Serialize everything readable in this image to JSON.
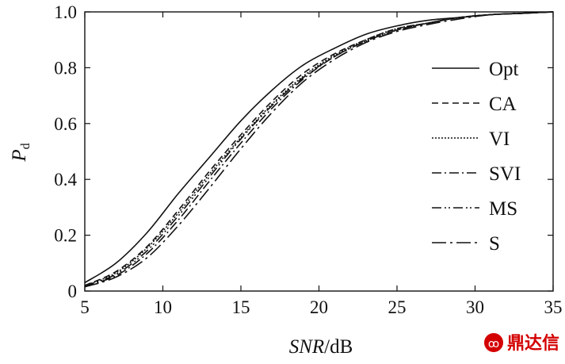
{
  "chart_data": {
    "type": "line",
    "title": "",
    "xlabel_italic": "SNR",
    "xlabel_unit": "/dB",
    "ylabel_main": "P",
    "ylabel_sub": "d",
    "xlim": [
      5,
      35
    ],
    "ylim": [
      0,
      1.0
    ],
    "x_ticks": [
      "5",
      "10",
      "15",
      "20",
      "25",
      "30",
      "35"
    ],
    "y_ticks": [
      "0",
      "0.2",
      "0.4",
      "0.6",
      "0.8",
      "1.0"
    ],
    "grid": false,
    "legend_position": "right",
    "series": [
      {
        "name": "Opt",
        "dash": "solid",
        "x": [
          5,
          7,
          9,
          11,
          13,
          15,
          17,
          19,
          21,
          23,
          25,
          27,
          29,
          31,
          33,
          35
        ],
        "y": [
          0.03,
          0.1,
          0.21,
          0.35,
          0.48,
          0.61,
          0.72,
          0.81,
          0.87,
          0.92,
          0.95,
          0.97,
          0.98,
          0.99,
          0.995,
          1.0
        ]
      },
      {
        "name": "CA",
        "dash": "dashed",
        "x": [
          5,
          7,
          9,
          11,
          13,
          15,
          17,
          19,
          21,
          23,
          25,
          27,
          29,
          31,
          33,
          35
        ],
        "y": [
          0.02,
          0.07,
          0.16,
          0.29,
          0.43,
          0.56,
          0.68,
          0.78,
          0.85,
          0.9,
          0.94,
          0.96,
          0.98,
          0.99,
          0.995,
          1.0
        ]
      },
      {
        "name": "VI",
        "dash": "dotted",
        "x": [
          5,
          7,
          9,
          11,
          13,
          15,
          17,
          19,
          21,
          23,
          25,
          27,
          29,
          31,
          33,
          35
        ],
        "y": [
          0.02,
          0.065,
          0.155,
          0.28,
          0.42,
          0.55,
          0.67,
          0.77,
          0.845,
          0.9,
          0.94,
          0.96,
          0.98,
          0.99,
          0.995,
          1.0
        ]
      },
      {
        "name": "SVI",
        "dash": "dashdot",
        "x": [
          5,
          7,
          9,
          11,
          13,
          15,
          17,
          19,
          21,
          23,
          25,
          27,
          29,
          31,
          33,
          35
        ],
        "y": [
          0.018,
          0.055,
          0.135,
          0.255,
          0.395,
          0.53,
          0.655,
          0.76,
          0.84,
          0.895,
          0.935,
          0.96,
          0.98,
          0.99,
          0.995,
          1.0
        ]
      },
      {
        "name": "MS",
        "dash": "dashdotdot",
        "x": [
          5,
          7,
          9,
          11,
          13,
          15,
          17,
          19,
          21,
          23,
          25,
          27,
          29,
          31,
          33,
          35
        ],
        "y": [
          0.019,
          0.06,
          0.145,
          0.27,
          0.41,
          0.545,
          0.665,
          0.765,
          0.84,
          0.895,
          0.935,
          0.96,
          0.98,
          0.99,
          0.995,
          1.0
        ]
      },
      {
        "name": "S",
        "dash": "longdashdot",
        "x": [
          5,
          7,
          9,
          11,
          13,
          15,
          17,
          19,
          21,
          23,
          25,
          27,
          29,
          31,
          33,
          35
        ],
        "y": [
          0.015,
          0.05,
          0.12,
          0.235,
          0.37,
          0.51,
          0.64,
          0.75,
          0.83,
          0.89,
          0.93,
          0.955,
          0.975,
          0.99,
          0.995,
          1.0
        ]
      }
    ]
  },
  "watermark": {
    "text": "鼎达信",
    "color": "#d40000"
  }
}
